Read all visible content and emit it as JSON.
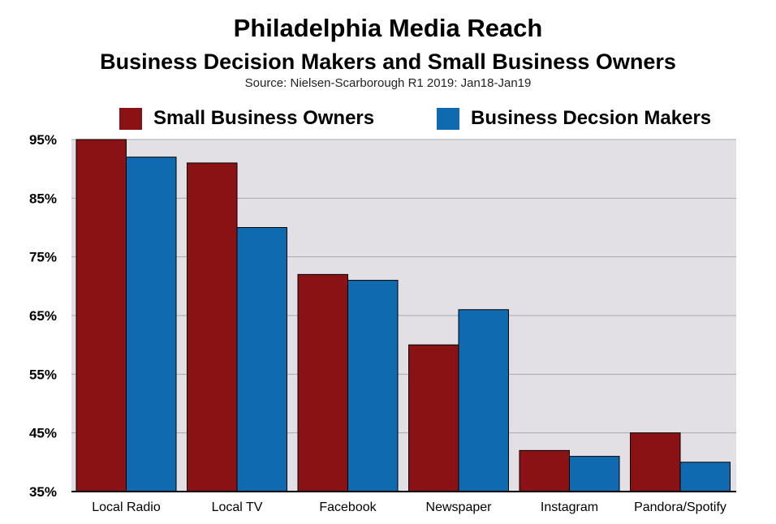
{
  "chart_data": {
    "type": "bar",
    "title": "Philadelphia Media Reach",
    "subtitle": "Business Decision Makers and Small Business Owners",
    "source": "Source: Nielsen-Scarborough R1 2019: Jan18-Jan19",
    "categories": [
      "Local Radio",
      "Local TV",
      "Facebook",
      "Newspaper",
      "Instagram",
      "Pandora/Spotify"
    ],
    "series": [
      {
        "name": "Small Business Owners",
        "color": "#8b1214",
        "values": [
          95,
          91,
          72,
          60,
          42,
          45
        ]
      },
      {
        "name": "Business Decsion Makers",
        "color": "#106ab0",
        "values": [
          92,
          80,
          71,
          66,
          41,
          40
        ]
      }
    ],
    "y_ticks": [
      "95%",
      "85%",
      "75%",
      "65%",
      "55%",
      "45%",
      "35%"
    ],
    "ylim": [
      35,
      95
    ],
    "grid": true,
    "legend_position": "top",
    "plot_background": "#e2e0e5"
  }
}
